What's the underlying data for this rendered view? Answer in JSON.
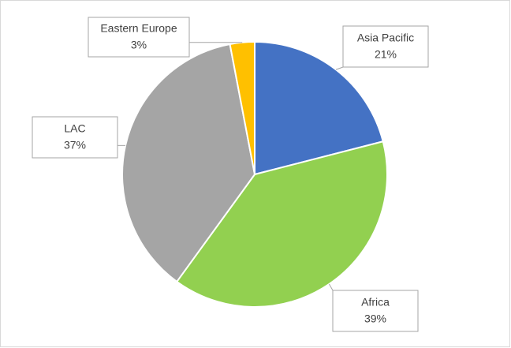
{
  "chart_data": {
    "type": "pie",
    "categories": [
      "Asia Pacific",
      "Africa",
      "LAC",
      "Eastern Europe"
    ],
    "values": [
      21,
      39,
      37,
      3
    ],
    "value_labels": [
      "21%",
      "39%",
      "37%",
      "3%"
    ],
    "colors": [
      "#4472c4",
      "#92d050",
      "#a5a5a5",
      "#ffc000"
    ]
  }
}
